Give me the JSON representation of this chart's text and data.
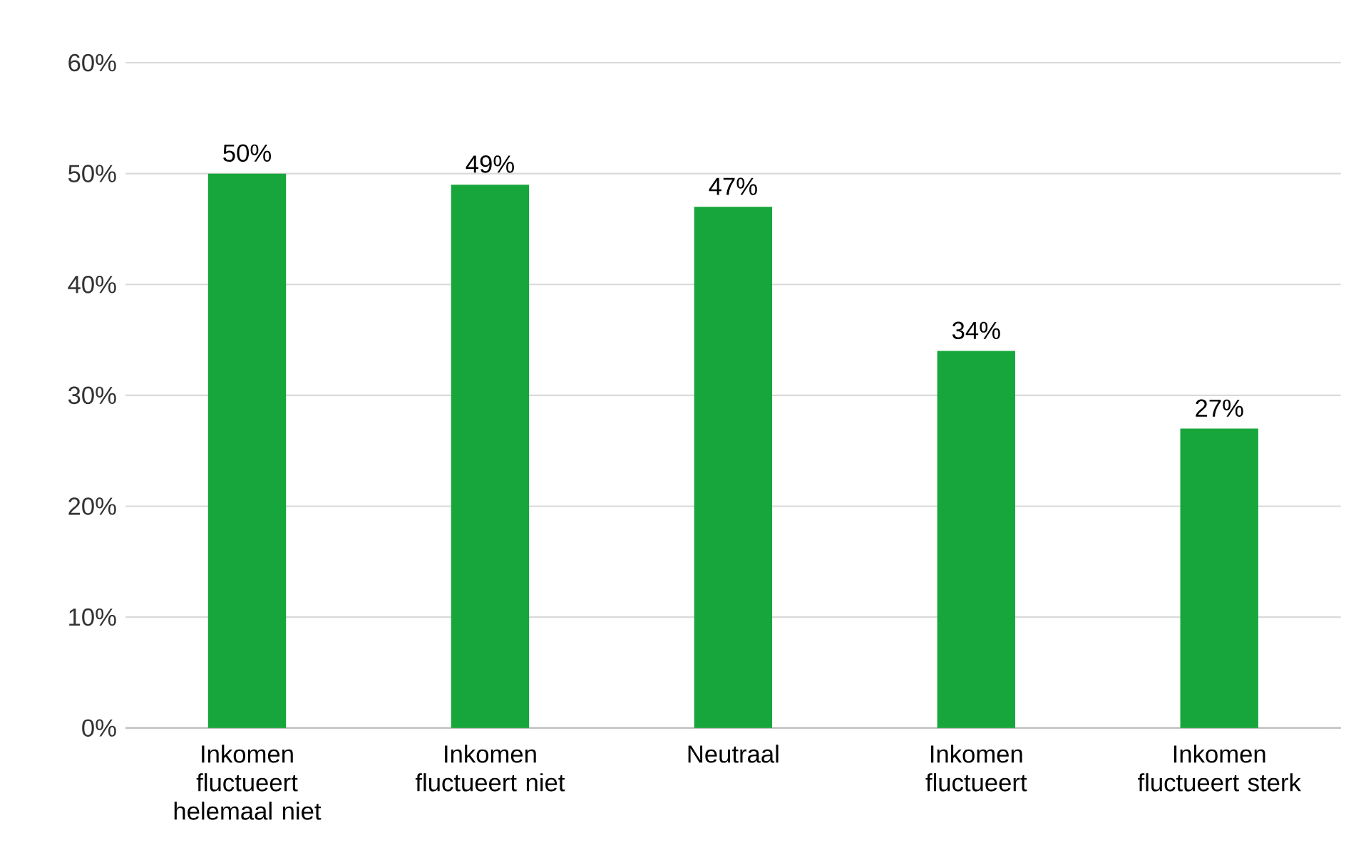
{
  "chart_data": {
    "type": "bar",
    "categories": [
      "Inkomen fluctueert helemaal niet",
      "Inkomen fluctueert niet",
      "Neutraal",
      "Inkomen fluctueert",
      "Inkomen fluctueert sterk"
    ],
    "values": [
      50,
      49,
      47,
      34,
      27
    ],
    "value_labels": [
      "50%",
      "49%",
      "47%",
      "34%",
      "27%"
    ],
    "color": "#17a63b",
    "ylim": [
      0,
      60
    ],
    "yticks": [
      {
        "value": 0,
        "label": "0%"
      },
      {
        "value": 10,
        "label": "10%"
      },
      {
        "value": 20,
        "label": "20%"
      },
      {
        "value": 30,
        "label": "30%"
      },
      {
        "value": 40,
        "label": "40%"
      },
      {
        "value": 50,
        "label": "50%"
      },
      {
        "value": 60,
        "label": "60%"
      }
    ],
    "grid": "y"
  }
}
